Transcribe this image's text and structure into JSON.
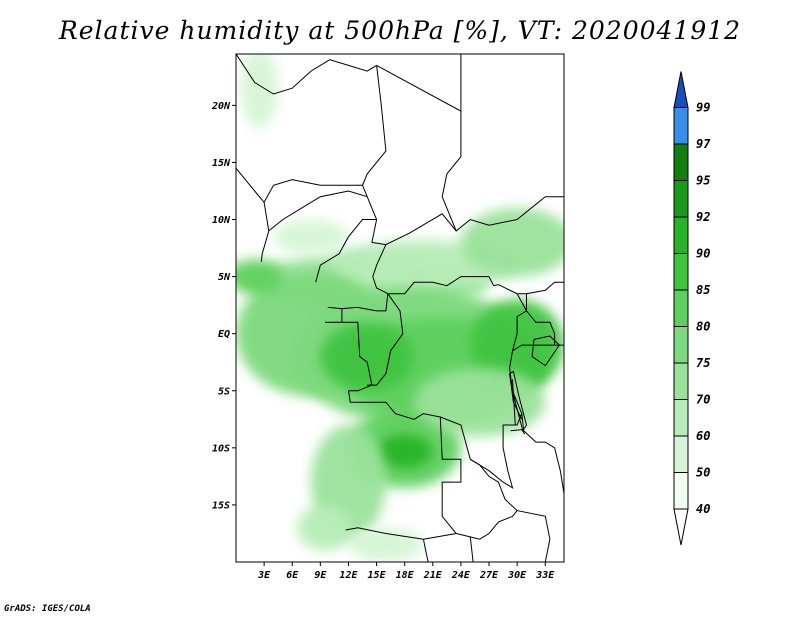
{
  "title": "Relative humidity at 500hPa [%], VT: 2020041912",
  "credit": "GrADS: IGES/COLA",
  "map": {
    "lon_range": [
      0,
      35
    ],
    "lat_range": [
      -20,
      24.5
    ],
    "lat_ticks": [
      {
        "value": 20,
        "label": "20N"
      },
      {
        "value": 15,
        "label": "15N"
      },
      {
        "value": 10,
        "label": "10N"
      },
      {
        "value": 5,
        "label": "5N"
      },
      {
        "value": 0,
        "label": "EQ"
      },
      {
        "value": -5,
        "label": "5S"
      },
      {
        "value": -10,
        "label": "10S"
      },
      {
        "value": -15,
        "label": "15S"
      }
    ],
    "lon_ticks": [
      {
        "value": 3,
        "label": "3E"
      },
      {
        "value": 6,
        "label": "6E"
      },
      {
        "value": 9,
        "label": "9E"
      },
      {
        "value": 12,
        "label": "12E"
      },
      {
        "value": 15,
        "label": "15E"
      },
      {
        "value": 18,
        "label": "18E"
      },
      {
        "value": 21,
        "label": "21E"
      },
      {
        "value": 24,
        "label": "24E"
      },
      {
        "value": 27,
        "label": "27E"
      },
      {
        "value": 30,
        "label": "30E"
      },
      {
        "value": 33,
        "label": "33E"
      }
    ]
  },
  "colorbar": {
    "levels": [
      {
        "label": "40",
        "color": "#f0fff0"
      },
      {
        "label": "50",
        "color": "#d6f5d6"
      },
      {
        "label": "60",
        "color": "#b8ecb8"
      },
      {
        "label": "70",
        "color": "#9ae29a"
      },
      {
        "label": "75",
        "color": "#7dd97d"
      },
      {
        "label": "80",
        "color": "#5fd05f"
      },
      {
        "label": "85",
        "color": "#3fc43f"
      },
      {
        "label": "90",
        "color": "#28b428"
      },
      {
        "label": "92",
        "color": "#1a9a1a"
      },
      {
        "label": "95",
        "color": "#118011"
      },
      {
        "label": "97",
        "color": "#3b8ee8"
      },
      {
        "label": "99",
        "color": "#1f6fd8"
      }
    ],
    "top_color": "#1450b8",
    "bottom_color": "#ffffff"
  },
  "humidity_regions": [
    {
      "lon": 2.5,
      "lat": 21.5,
      "rx": 2.0,
      "ry": 3.5,
      "level": 1
    },
    {
      "lon": 14,
      "lat": 4.5,
      "rx": 13,
      "ry": 2.5,
      "level": 3
    },
    {
      "lon": 20,
      "lat": 6,
      "rx": 10,
      "ry": 2.2,
      "level": 2
    },
    {
      "lon": 30,
      "lat": 8,
      "rx": 6,
      "ry": 3,
      "level": 3
    },
    {
      "lon": 8,
      "lat": 0,
      "rx": 8,
      "ry": 5.5,
      "level": 4
    },
    {
      "lon": 19,
      "lat": -2,
      "rx": 13,
      "ry": 6,
      "level": 4
    },
    {
      "lon": 22,
      "lat": -3,
      "rx": 11,
      "ry": 4.5,
      "level": 5
    },
    {
      "lon": 14,
      "lat": -2,
      "rx": 5,
      "ry": 3,
      "level": 6
    },
    {
      "lon": 30,
      "lat": -1,
      "rx": 5,
      "ry": 4,
      "level": 6
    },
    {
      "lon": 18,
      "lat": -10,
      "rx": 6,
      "ry": 3.5,
      "level": 5
    },
    {
      "lon": 18,
      "lat": -10.3,
      "rx": 3,
      "ry": 1.5,
      "level": 7
    },
    {
      "lon": 12,
      "lat": -13,
      "rx": 4,
      "ry": 5,
      "level": 3
    },
    {
      "lon": 9.5,
      "lat": -17,
      "rx": 3,
      "ry": 2,
      "level": 2
    },
    {
      "lon": 16,
      "lat": -18.5,
      "rx": 4,
      "ry": 1.5,
      "level": 1
    },
    {
      "lon": 26,
      "lat": -6,
      "rx": 7,
      "ry": 3,
      "level": 3
    },
    {
      "lon": 2,
      "lat": 5,
      "rx": 3,
      "ry": 1.5,
      "level": 5
    },
    {
      "lon": 8,
      "lat": 8.5,
      "rx": 4,
      "ry": 1.5,
      "level": 1
    }
  ]
}
